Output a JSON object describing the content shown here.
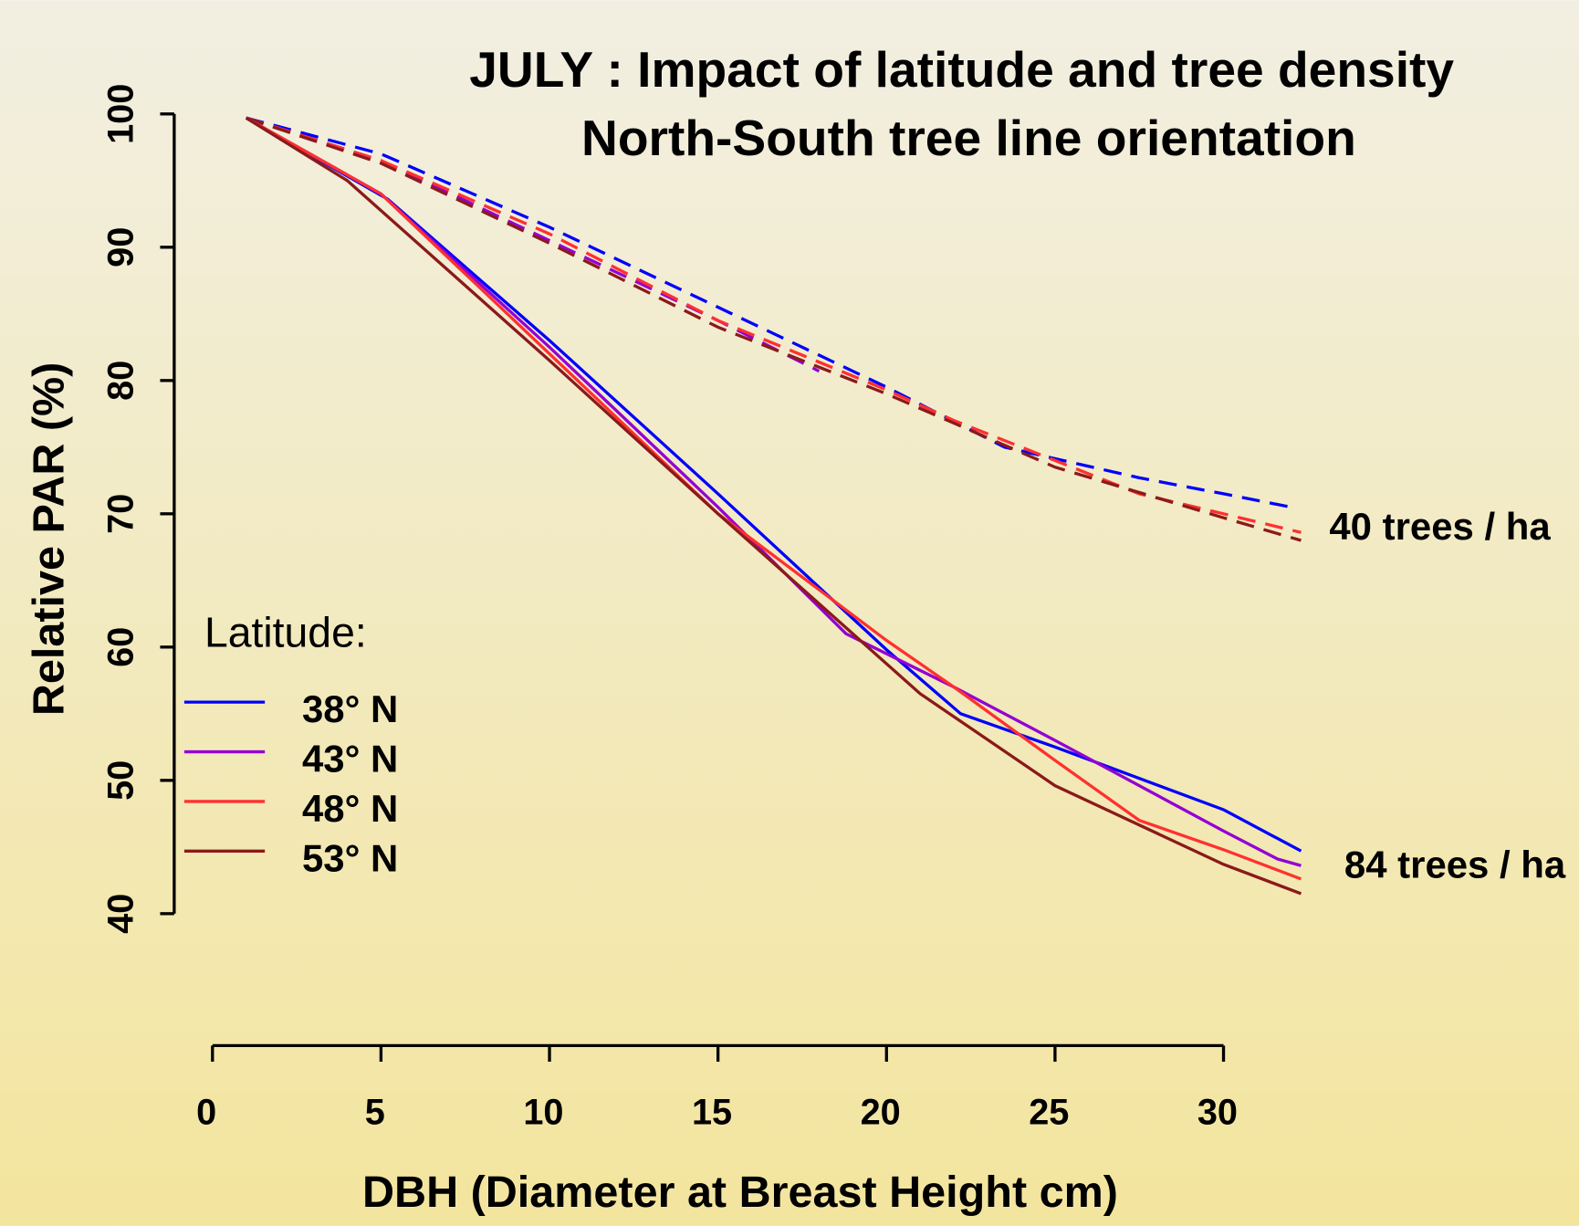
{
  "chart_data": {
    "type": "line",
    "title": "JULY : Impact of latitude and tree density",
    "subtitle": "North-South tree line orientation",
    "xlabel": "DBH (Diameter at Breast Height cm)",
    "ylabel": "Relative PAR (%)",
    "xlim": [
      0,
      30
    ],
    "xticks": [
      0,
      5,
      10,
      15,
      20,
      25,
      30
    ],
    "ylim": [
      40,
      100
    ],
    "yticks": [
      40,
      50,
      60,
      70,
      80,
      90,
      100
    ],
    "legend_title": "Latitude:",
    "legend_position": "left",
    "groups": [
      {
        "label": "40 trees / ha",
        "linestyle": "dashed",
        "series": [
          {
            "name": "38° N",
            "color": "#0000ff",
            "x": [
              1,
              5,
              10,
              15,
              20,
              23.5,
              27.5,
              30,
              32
            ],
            "values": [
              99.7,
              97,
              91.5,
              85.5,
              79.5,
              75,
              72.7,
              71.5,
              70.5
            ]
          },
          {
            "name": "43° N",
            "color": "#9400d3",
            "x": [
              1,
              5,
              10,
              15,
              18
            ],
            "values": [
              99.7,
              96.5,
              90.5,
              84.5,
              80.7
            ]
          },
          {
            "name": "48° N",
            "color": "#ff3030",
            "x": [
              1,
              5,
              10,
              15,
              20,
              22,
              25,
              27.5,
              30,
              32.3
            ],
            "values": [
              99.7,
              96.5,
              91,
              84.5,
              79.3,
              77,
              74,
              71.5,
              70,
              68.6
            ]
          },
          {
            "name": "53° N",
            "color": "#8b1a1a",
            "x": [
              1,
              5,
              10,
              15,
              20,
              25,
              30,
              32.3
            ],
            "values": [
              99.7,
              96.3,
              90.3,
              84,
              79,
              73.5,
              69.7,
              68
            ]
          }
        ]
      },
      {
        "label": "84 trees / ha",
        "linestyle": "solid",
        "series": [
          {
            "name": "38° N",
            "color": "#0000ff",
            "x": [
              1,
              5.2,
              10,
              15,
              20,
              22.2,
              25,
              30,
              32.3
            ],
            "values": [
              99.7,
              93.6,
              83,
              71.5,
              59.8,
              55,
              52.5,
              47.8,
              44.7
            ]
          },
          {
            "name": "43° N",
            "color": "#9400d3",
            "x": [
              1,
              5,
              10,
              15,
              18.8,
              20,
              22,
              25,
              30,
              31.6,
              32.3
            ],
            "values": [
              99.7,
              94,
              82.5,
              70.5,
              61,
              59.5,
              57,
              53,
              46.2,
              44.1,
              43.6
            ]
          },
          {
            "name": "48° N",
            "color": "#ff3030",
            "x": [
              1,
              5,
              10,
              15,
              20,
              22,
              25,
              27.5,
              30,
              32.3
            ],
            "values": [
              99.7,
              94,
              82,
              70,
              60.5,
              57,
              51.5,
              47,
              44.8,
              42.6
            ]
          },
          {
            "name": "53° N",
            "color": "#8b1a1a",
            "x": [
              1,
              4,
              10,
              15,
              21,
              25,
              30,
              32.3
            ],
            "values": [
              99.7,
              95,
              81.5,
              70,
              56.5,
              49.6,
              43.7,
              41.5
            ]
          }
        ]
      }
    ]
  }
}
